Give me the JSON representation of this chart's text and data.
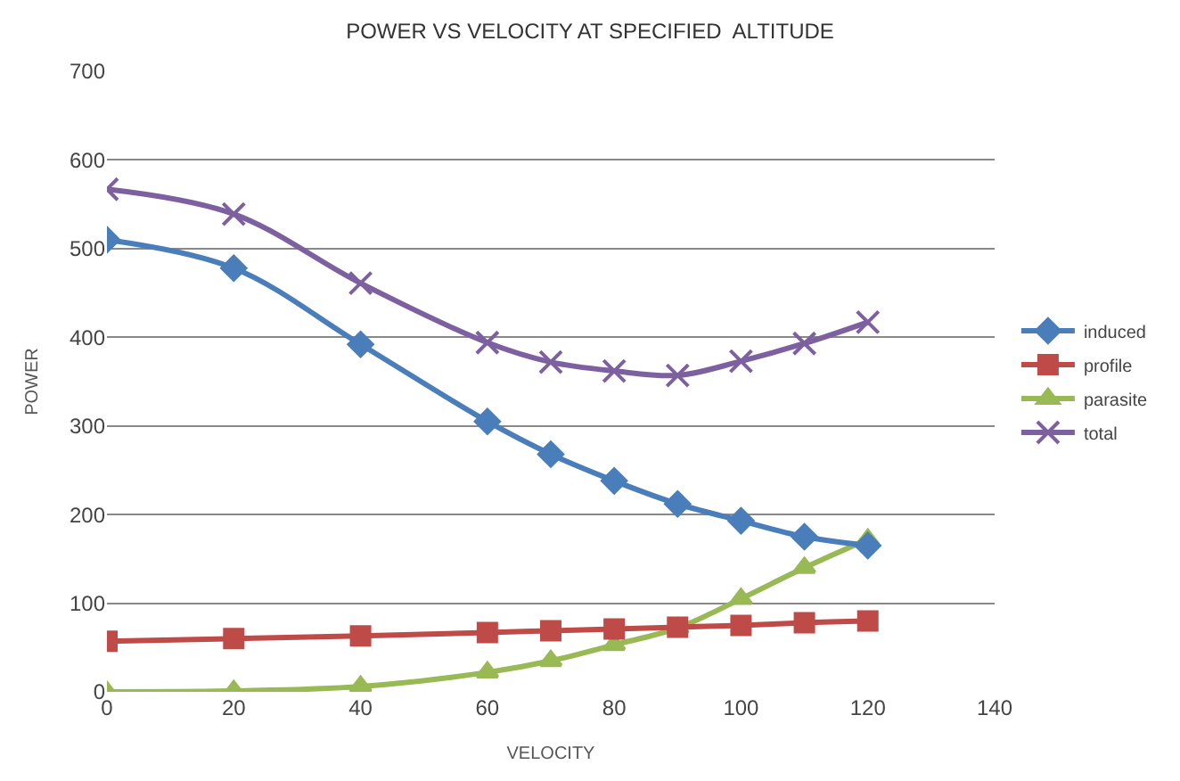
{
  "chart_data": {
    "type": "line",
    "title": "POWER VS VELOCITY AT SPECIFIED  ALTITUDE",
    "xlabel": "VELOCITY",
    "ylabel": "POWER",
    "x": [
      0,
      20,
      40,
      60,
      70,
      80,
      90,
      100,
      110,
      120
    ],
    "series": [
      {
        "name": "induced",
        "color": "#4a7ebb",
        "marker": "diamond",
        "values": [
          510,
          478,
          392,
          305,
          268,
          238,
          212,
          193,
          175,
          165
        ]
      },
      {
        "name": "profile",
        "color": "#be4b48",
        "marker": "square",
        "values": [
          57,
          60,
          63,
          67,
          69,
          71,
          73,
          75,
          78,
          80
        ]
      },
      {
        "name": "parasite",
        "color": "#98b954",
        "marker": "triangle",
        "values": [
          0,
          1,
          6,
          22,
          35,
          53,
          72,
          105,
          140,
          172
        ]
      },
      {
        "name": "total",
        "color": "#7d60a0",
        "marker": "cross",
        "values": [
          567,
          539,
          461,
          394,
          372,
          362,
          357,
          373,
          393,
          417
        ]
      }
    ],
    "xlim": [
      0,
      140
    ],
    "xticks": [
      0,
      20,
      40,
      60,
      80,
      100,
      120,
      140
    ],
    "ylim": [
      0,
      700
    ],
    "yticks": [
      0,
      100,
      200,
      300,
      400,
      500,
      600,
      700
    ],
    "grid": "y",
    "legend": "right"
  }
}
